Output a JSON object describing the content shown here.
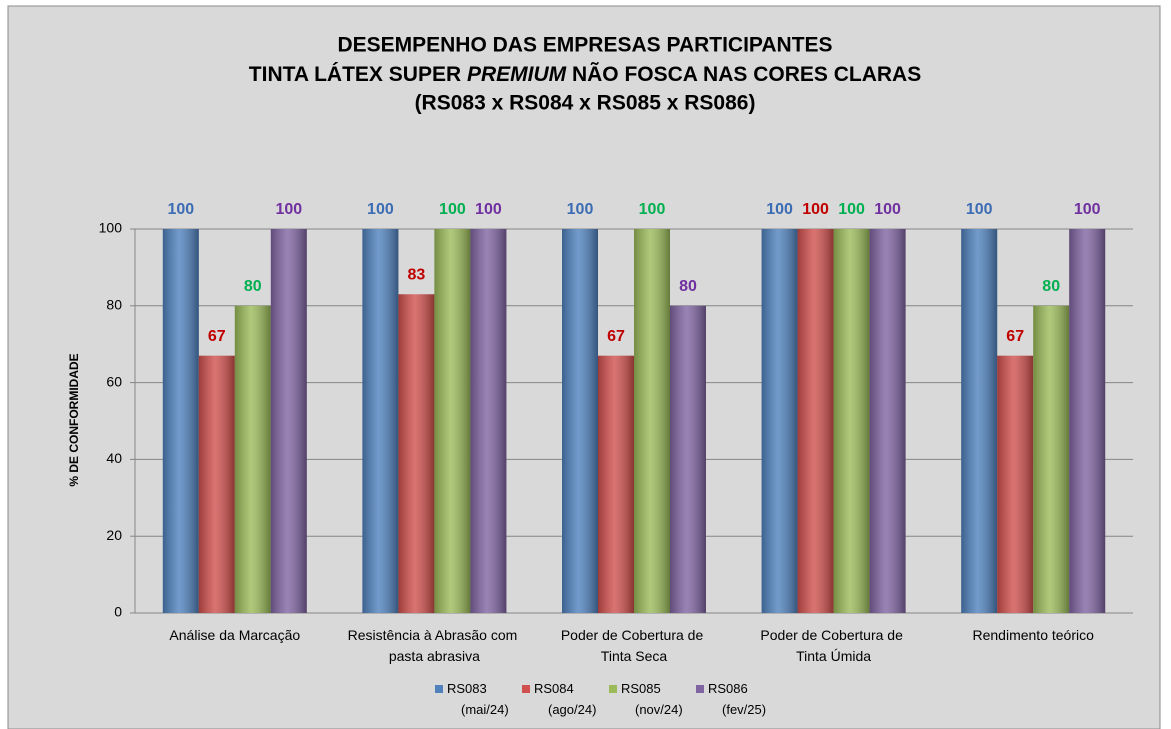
{
  "chart_data": {
    "type": "bar",
    "title": [
      "DESEMPENHO DAS EMPRESAS PARTICIPANTES",
      [
        "TINTA LÁTEX SUPER ",
        "PREMIUM",
        " NÃO FOSCA NAS CORES CLARAS"
      ],
      "(RS083 x RS084 x RS085 x RS086)"
    ],
    "y_axis_label": "% DE CONFORMIDADE",
    "categories": [
      "Análise da Marcação",
      "Resistência à Abrasão com pasta abrasiva",
      "Poder de Cobertura de Tinta Seca",
      "Poder de Cobertura de Tinta Úmida",
      "Rendimento teórico"
    ],
    "series": [
      {
        "name": "RS083 (mai/24)",
        "color": "#4f81bd",
        "label_color": "#3c6cb4",
        "values": [
          100,
          100,
          100,
          100,
          100
        ]
      },
      {
        "name": "RS084 (ago/24)",
        "color": "#d0504d",
        "label_color": "#c00000",
        "values": [
          67,
          83,
          67,
          100,
          67
        ]
      },
      {
        "name": "RS085 (nov/24)",
        "color": "#9bbb59",
        "label_color": "#00b050",
        "values": [
          80,
          100,
          100,
          100,
          80
        ]
      },
      {
        "name": "RS086 (fev/25)",
        "color": "#8064a2",
        "label_color": "#7030a0",
        "values": [
          100,
          100,
          80,
          100,
          100
        ]
      }
    ],
    "ylim": [
      0,
      100
    ],
    "yticks": [
      0,
      20,
      40,
      60,
      80,
      100
    ],
    "grid": true,
    "legend": "bottom"
  }
}
